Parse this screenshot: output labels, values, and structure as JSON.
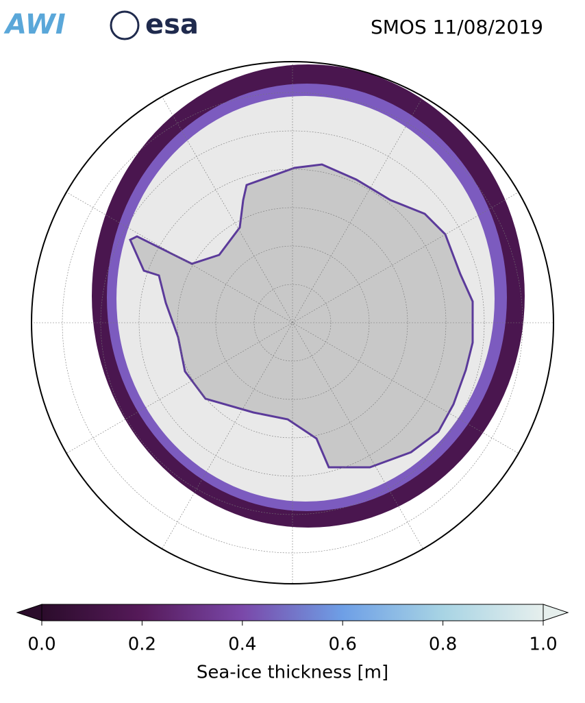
{
  "header": {
    "logos": [
      "AWI",
      "esa"
    ],
    "title": "SMOS 11/08/2019"
  },
  "colorbar": {
    "label": "Sea-ice thickness [m]",
    "lim": [
      0,
      1
    ],
    "ticks": [
      {
        "value": 0,
        "label": "0.0"
      },
      {
        "value": 0.2,
        "label": "0.2"
      },
      {
        "value": 0.4,
        "label": "0.4"
      },
      {
        "value": 0.6,
        "label": "0.6"
      },
      {
        "value": 0.8,
        "label": "0.8"
      },
      {
        "value": 1,
        "label": "1.0"
      }
    ],
    "colors": [
      "#2b0c2b",
      "#561a5a",
      "#7a48a9",
      "#6e9fe6",
      "#a8d4e4",
      "#e6efed"
    ]
  }
}
